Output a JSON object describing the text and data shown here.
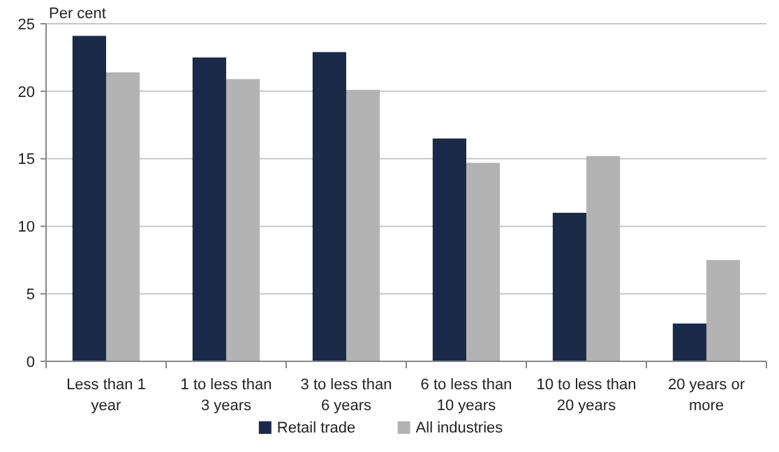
{
  "chart_data": {
    "type": "bar",
    "ylabel": "Per cent",
    "categories": [
      "Less than 1 year",
      "1 to less than 3 years",
      "3 to less than 6 years",
      "6 to less than 10 years",
      "10 to less than 20 years",
      "20 years or more"
    ],
    "series": [
      {
        "name": "Retail trade",
        "color": "#1a2b4a",
        "values": [
          24.1,
          22.5,
          22.9,
          16.5,
          11.0,
          2.8
        ]
      },
      {
        "name": "All industries",
        "color": "#b3b3b3",
        "values": [
          21.4,
          20.9,
          20.1,
          14.7,
          15.2,
          7.5
        ]
      }
    ],
    "ylim": [
      0,
      25
    ],
    "yticks": [
      0,
      5,
      10,
      15,
      20,
      25
    ],
    "grid": "y",
    "legend": "bottom"
  }
}
